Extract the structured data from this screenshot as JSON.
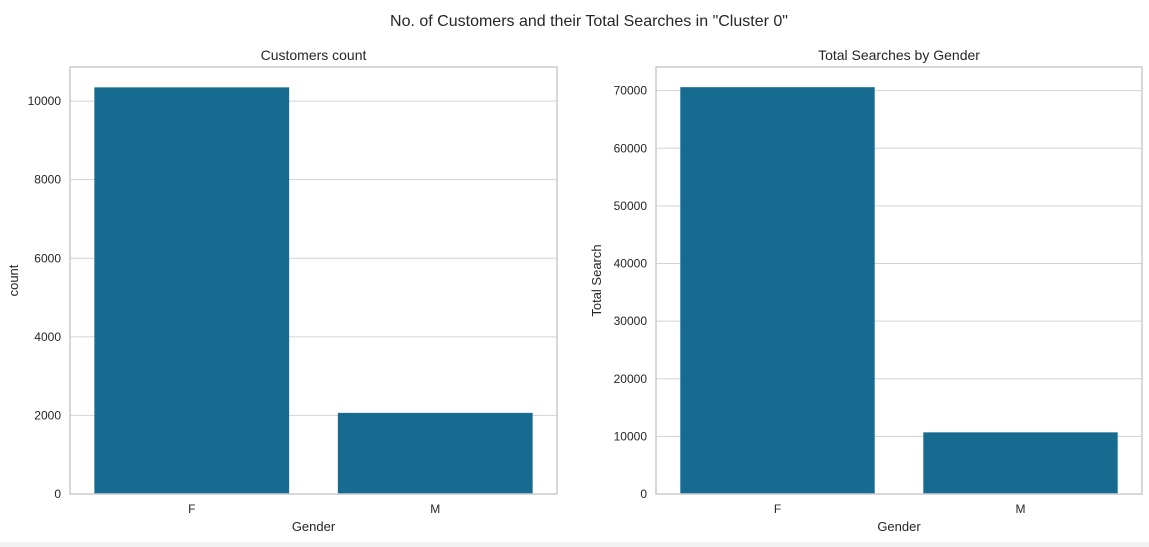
{
  "figure": {
    "suptitle": "No. of Customers and their Total Searches in \"Cluster 0\"",
    "background": "#ffffff",
    "page_background": "#f2f2f2",
    "bar_color": "#176b91",
    "grid_color": "#d3d3d3",
    "spine_color": "#cccccc"
  },
  "chart_data": [
    {
      "type": "bar",
      "title": "Customers count",
      "xlabel": "Gender",
      "ylabel": "count",
      "categories": [
        "F",
        "M"
      ],
      "values": [
        10350,
        2065
      ],
      "ylim": [
        0,
        10868
      ],
      "yticks": [
        0,
        2000,
        4000,
        6000,
        8000,
        10000
      ],
      "grid": true
    },
    {
      "type": "bar",
      "title": "Total Searches by Gender",
      "xlabel": "Gender",
      "ylabel": "Total Search",
      "categories": [
        "F",
        "M"
      ],
      "values": [
        70600,
        10700
      ],
      "ylim": [
        0,
        74100
      ],
      "yticks": [
        0,
        10000,
        20000,
        30000,
        40000,
        50000,
        60000,
        70000
      ],
      "grid": true
    }
  ]
}
